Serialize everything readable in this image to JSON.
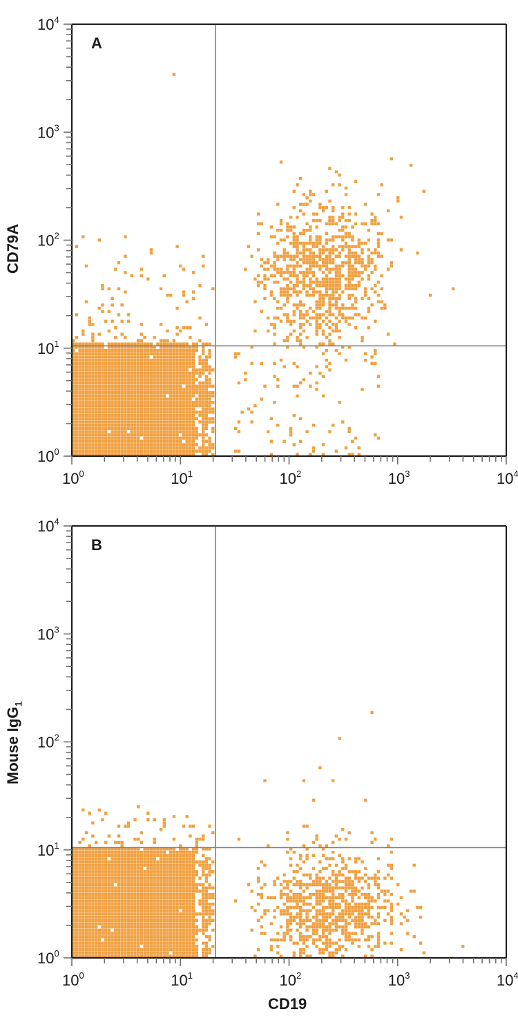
{
  "figure": {
    "panels": [
      {
        "letter": "A",
        "ylabel": "CD79A",
        "ylabel_sub": "",
        "xlabel": ""
      },
      {
        "letter": "B",
        "ylabel": "Mouse IgG",
        "ylabel_sub": "1",
        "xlabel": "CD19"
      }
    ],
    "tick_labels": [
      "10",
      "10",
      "10",
      "10",
      "10"
    ],
    "tick_exponents": [
      "0",
      "1",
      "2",
      "3",
      "4"
    ],
    "colors": {
      "dot": "#F0A040",
      "axis": "#1a1a1a",
      "quadrant_line": "#808080",
      "tick": "#6e6e6e"
    }
  },
  "chart_data": [
    {
      "type": "scatter",
      "title": "A",
      "xlabel": "CD19",
      "ylabel": "CD79A",
      "xscale": "log",
      "yscale": "log",
      "xlim": [
        1,
        10000
      ],
      "ylim": [
        1,
        10000
      ],
      "x_ticks": [
        "10^0",
        "10^1",
        "10^2",
        "10^3",
        "10^4"
      ],
      "y_ticks": [
        "10^0",
        "10^1",
        "10^2",
        "10^3",
        "10^4"
      ],
      "grid": false,
      "quadrant_gate": {
        "x": 21,
        "y": 10.5
      },
      "populations": [
        {
          "name": "CD19- CD79A- (lower-left)",
          "x_range": [
            1,
            20
          ],
          "y_range": [
            1,
            11
          ],
          "density": "very high",
          "center": [
            4,
            3
          ],
          "n": 2600,
          "spread": [
            0.42,
            0.3
          ]
        },
        {
          "name": "CD19+ CD79A+ (upper-right)",
          "center": [
            200,
            50
          ],
          "spread": [
            0.28,
            0.33
          ],
          "density": "high",
          "n": 950
        },
        {
          "name": "sparse lower-left above gate",
          "x_range": [
            1,
            20
          ],
          "y_range": [
            11,
            100
          ],
          "n": 110
        },
        {
          "name": "sparse lower-right",
          "x_range": [
            30,
            700
          ],
          "y_range": [
            1,
            10
          ],
          "n": 90
        }
      ],
      "outliers": [
        [
          8.5,
          3500
        ],
        [
          3.2,
          105
        ],
        [
          1.3,
          105
        ],
        [
          1300,
          500
        ],
        [
          1800,
          290
        ],
        [
          2000,
          31
        ],
        [
          3200,
          36
        ],
        [
          1500,
          75
        ],
        [
          900,
          550
        ]
      ]
    },
    {
      "type": "scatter",
      "title": "B",
      "xlabel": "CD19",
      "ylabel": "Mouse IgG1",
      "xscale": "log",
      "yscale": "log",
      "xlim": [
        1,
        10000
      ],
      "ylim": [
        1,
        10000
      ],
      "x_ticks": [
        "10^0",
        "10^1",
        "10^2",
        "10^3",
        "10^4"
      ],
      "y_ticks": [
        "10^0",
        "10^1",
        "10^2",
        "10^3",
        "10^4"
      ],
      "grid": false,
      "quadrant_gate": {
        "x": 21,
        "y": 10.5
      },
      "populations": [
        {
          "name": "CD19- (lower-left)",
          "x_range": [
            1,
            20
          ],
          "y_range": [
            1,
            10
          ],
          "density": "very high",
          "center": [
            4,
            3
          ],
          "n": 2600,
          "spread": [
            0.42,
            0.3
          ]
        },
        {
          "name": "CD19+ (lower-right)",
          "center": [
            230,
            3
          ],
          "spread": [
            0.3,
            0.25
          ],
          "density": "high",
          "n": 900
        },
        {
          "name": "sparse lower-left above gate",
          "x_range": [
            1,
            20
          ],
          "y_range": [
            11,
            25
          ],
          "n": 55
        }
      ],
      "outliers": [
        [
          600,
          190
        ],
        [
          300,
          108
        ],
        [
          200,
          57
        ],
        [
          140,
          45
        ],
        [
          250,
          43
        ],
        [
          60,
          44
        ],
        [
          170,
          28
        ],
        [
          490,
          28
        ],
        [
          150,
          17
        ],
        [
          1300,
          4
        ],
        [
          4000,
          1.3
        ],
        [
          1700,
          1.1
        ]
      ]
    }
  ]
}
